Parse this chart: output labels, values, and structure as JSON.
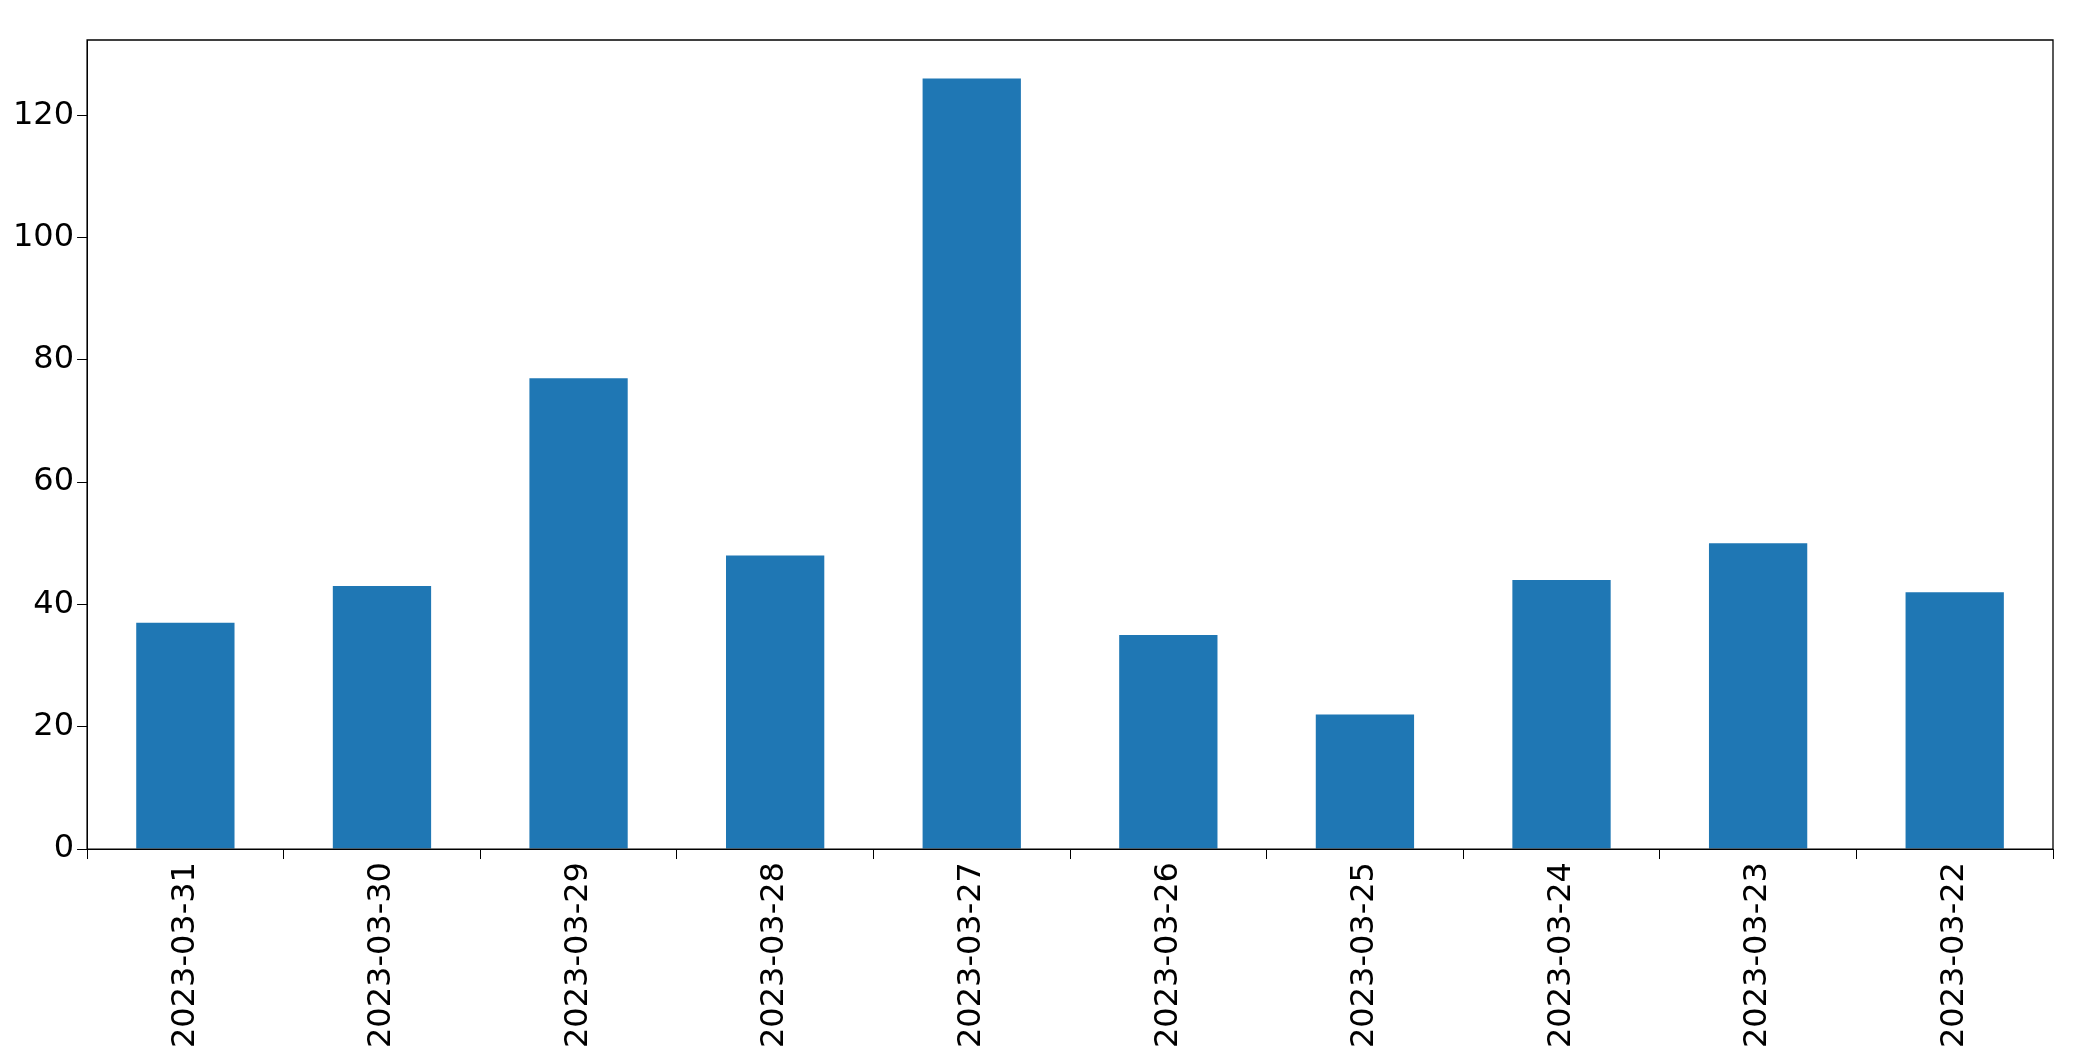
{
  "chart_data": {
    "type": "bar",
    "categories": [
      "2023-03-31",
      "2023-03-30",
      "2023-03-29",
      "2023-03-28",
      "2023-03-27",
      "2023-03-26",
      "2023-03-25",
      "2023-03-24",
      "2023-03-23",
      "2023-03-22"
    ],
    "values": [
      37,
      43,
      77,
      48,
      126,
      35,
      22,
      44,
      50,
      42
    ],
    "color": "#1f77b4",
    "ylim": [
      0,
      132.3
    ],
    "yticks": [
      0,
      20,
      40,
      60,
      80,
      100,
      120
    ],
    "grid": false,
    "legend": false
  }
}
